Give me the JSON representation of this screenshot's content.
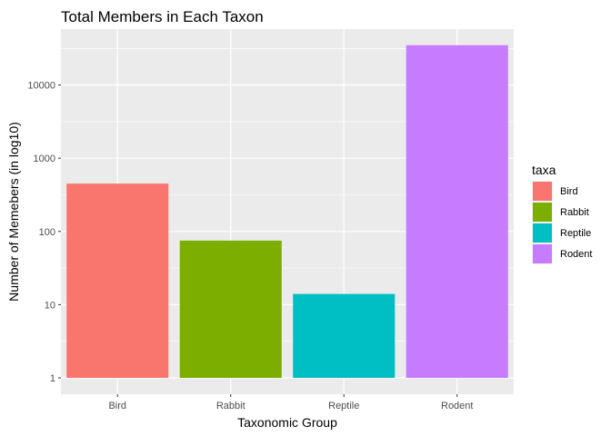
{
  "chart_data": {
    "type": "bar",
    "title": "Total Members in Each Taxon",
    "xlabel": "Taxonomic Group",
    "ylabel": "Number of Memebers (in log10)",
    "y_scale": "log10",
    "ylim": [
      1,
      35000
    ],
    "yticks": [
      {
        "value": 1,
        "label": "1"
      },
      {
        "value": 10,
        "label": "10"
      },
      {
        "value": 100,
        "label": "100"
      },
      {
        "value": 1000,
        "label": "1000"
      },
      {
        "value": 10000,
        "label": "10000"
      }
    ],
    "categories": [
      "Bird",
      "Rabbit",
      "Reptile",
      "Rodent"
    ],
    "values": [
      450,
      75,
      14,
      35000
    ],
    "colors": [
      "#F8766D",
      "#7CAE00",
      "#00BFC4",
      "#C77CFF"
    ],
    "panel_background": "#EBEBEB",
    "grid": true,
    "legend": {
      "title": "taxa",
      "position": "right",
      "entries": [
        "Bird",
        "Rabbit",
        "Reptile",
        "Rodent"
      ]
    }
  }
}
